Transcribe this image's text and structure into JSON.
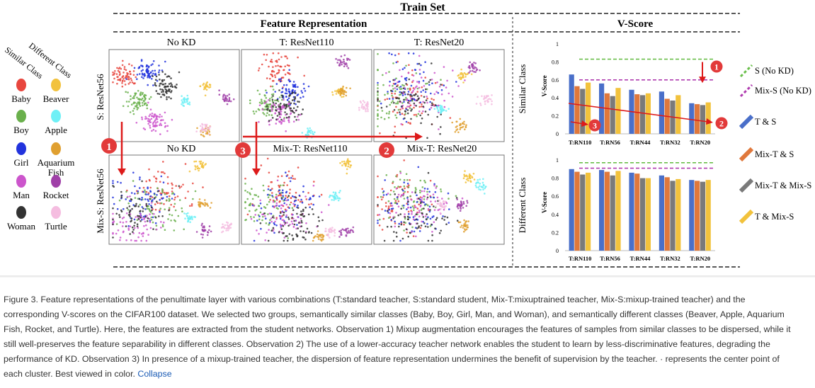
{
  "figure": {
    "title": "Train Set",
    "feature_title": "Feature Representation",
    "vscore_title": "V-Score",
    "legend_left": {
      "similar_header": "Similar Class",
      "different_header": "Different Class",
      "items": [
        {
          "label": "Baby",
          "color": "#e8463e"
        },
        {
          "label": "Beaver",
          "color": "#f2c23c"
        },
        {
          "label": "Boy",
          "color": "#6ab04c"
        },
        {
          "label": "Apple",
          "color": "#6ff0f6"
        },
        {
          "label": "Girl",
          "color": "#2233dd"
        },
        {
          "label": "Aquarium\nFish",
          "color": "#e0a030"
        },
        {
          "label": "Man",
          "color": "#cc55cc"
        },
        {
          "label": "Rocket",
          "color": "#a040a8"
        },
        {
          "label": "Woman",
          "color": "#333333"
        },
        {
          "label": "Turtle",
          "color": "#f5bde0"
        }
      ]
    },
    "row_labels": [
      "S: ResNet56",
      "Mix-S: ResNet56"
    ],
    "panels": [
      {
        "title": "No KD"
      },
      {
        "title": "T: ResNet110"
      },
      {
        "title": "T: ResNet20"
      },
      {
        "title": "No KD"
      },
      {
        "title": "Mix-T: ResNet110"
      },
      {
        "title": "Mix-T: ResNet20"
      }
    ],
    "markers": [
      "1",
      "2",
      "3"
    ]
  },
  "chart_data": [
    {
      "type": "bar",
      "title": "Similar Class",
      "ylabel": "V-Score",
      "categories": [
        "T:RN110",
        "T:RN56",
        "T:RN44",
        "T:RN32",
        "T:RN20"
      ],
      "ylim": [
        0,
        1
      ],
      "yticks": [
        "0",
        "0.2",
        "0.4",
        "0.6",
        "0.8",
        "1"
      ],
      "series": [
        {
          "name": "T & S",
          "values": [
            0.66,
            0.56,
            0.49,
            0.47,
            0.34
          ]
        },
        {
          "name": "Mix-T & S",
          "values": [
            0.53,
            0.45,
            0.44,
            0.39,
            0.33
          ]
        },
        {
          "name": "Mix-T & Mix-S",
          "values": [
            0.5,
            0.42,
            0.43,
            0.37,
            0.32
          ]
        },
        {
          "name": "T & Mix-S",
          "values": [
            0.57,
            0.51,
            0.45,
            0.43,
            0.35
          ]
        }
      ],
      "reference_lines": [
        {
          "name": "S (No KD)",
          "value": 0.83
        },
        {
          "name": "Mix-S (No KD)",
          "value": 0.6
        }
      ]
    },
    {
      "type": "bar",
      "title": "Different Class",
      "ylabel": "V-Score",
      "categories": [
        "T:RN110",
        "T:RN56",
        "T:RN44",
        "T:RN32",
        "T:RN20"
      ],
      "ylim": [
        0,
        1
      ],
      "yticks": [
        "0",
        "0.2",
        "0.4",
        "0.6",
        "0.8",
        "1"
      ],
      "series": [
        {
          "name": "T & S",
          "values": [
            0.9,
            0.89,
            0.86,
            0.83,
            0.78
          ]
        },
        {
          "name": "Mix-T & S",
          "values": [
            0.87,
            0.87,
            0.85,
            0.81,
            0.77
          ]
        },
        {
          "name": "Mix-T & Mix-S",
          "values": [
            0.84,
            0.83,
            0.8,
            0.77,
            0.76
          ]
        },
        {
          "name": "T & Mix-S",
          "values": [
            0.86,
            0.88,
            0.8,
            0.79,
            0.78
          ]
        }
      ],
      "reference_lines": [
        {
          "name": "S (No KD)",
          "value": 0.97
        },
        {
          "name": "Mix-S (No KD)",
          "value": 0.91
        }
      ]
    }
  ],
  "legend_right": [
    {
      "name": "S (No KD)",
      "color": "#6abf4b",
      "dashed": true
    },
    {
      "name": "Mix-S (No KD)",
      "color": "#b03cb0",
      "dashed": true
    },
    {
      "name": "T & S",
      "color": "#4a6fc9",
      "dashed": false
    },
    {
      "name": "Mix-T & S",
      "color": "#e0783c",
      "dashed": false
    },
    {
      "name": "Mix-T & Mix-S",
      "color": "#7a7a7a",
      "dashed": false
    },
    {
      "name": "T & Mix-S",
      "color": "#f2c23c",
      "dashed": false
    }
  ],
  "caption": {
    "text": "Figure 3. Feature representations of the penultimate layer with various combinations (T:standard teacher, S:standard student, Mix-T:mixuptrained teacher, Mix-S:mixup-trained teacher) and the corresponding V-scores on the CIFAR100 dataset. We selected two groups, semantically similar classes (Baby, Boy, Girl, Man, and Woman), and semantically different classes (Beaver, Apple, Aquarium Fish, Rocket, and Turtle). Here, the features are extracted from the student networks. Observation 1) Mixup augmentation encourages the features of samples from similar classes to be dispersed, while it still well-preserves the feature separability in different classes. Observation 2) The use of a lower-accuracy teacher network enables the student to learn by less-discriminative features, degrading the performance of KD. Observation 3) In presence of a mixup-trained teacher, the dispersion of feature representation undermines the benefit of supervision by the teacher. · represents the center point of each cluster. Best viewed in color.",
    "link": "Collapse"
  }
}
